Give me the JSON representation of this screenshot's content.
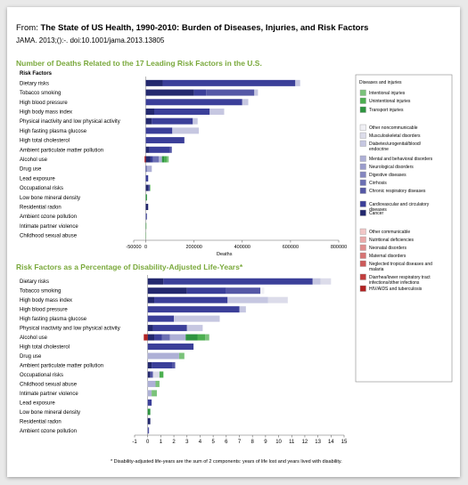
{
  "header": {
    "from_label": "From:",
    "title": "The State of US Health, 1990-2010:  Burden of Diseases, Injuries, and Risk Factors",
    "citation": "JAMA. 2013;():-. doi:10.1001/jama.2013.13805"
  },
  "legend": {
    "groups": [
      {
        "heading": "Diseases and injuries",
        "items": [
          {
            "label": "Intentional injuries",
            "color": "#7ac27a"
          },
          {
            "label": "Unintentional injuries",
            "color": "#4caf50"
          },
          {
            "label": "Transport injuries",
            "color": "#2e9440"
          }
        ]
      },
      {
        "heading": "",
        "items": [
          {
            "label": "Other noncommunicable",
            "color": "#f0f0f5"
          },
          {
            "label": "Musculoskeletal disorders",
            "color": "#dcdcea"
          },
          {
            "label": "Diabetes/urogenital/blood/ endocrine",
            "color": "#c6c7e1"
          },
          {
            "label": "Mental and behavioral disorders",
            "color": "#aeb0d6"
          },
          {
            "label": "Neurological disorders",
            "color": "#9a9ccc"
          },
          {
            "label": "Digestive diseases",
            "color": "#8486c0"
          },
          {
            "label": "Cirrhosis",
            "color": "#6b6fb3"
          },
          {
            "label": "Chronic respiratory diseases",
            "color": "#5558a6"
          },
          {
            "label": "Cardiovascular and circulatory diseases",
            "color": "#3b3f99"
          },
          {
            "label": "Cancer",
            "color": "#23286e"
          }
        ]
      },
      {
        "heading": "",
        "items": [
          {
            "label": "Other communicable",
            "color": "#f2c7c7"
          },
          {
            "label": "Nutritional deficiencies",
            "color": "#eaa9a9"
          },
          {
            "label": "Neonatal disorders",
            "color": "#e08e8e"
          },
          {
            "label": "Maternal disorders",
            "color": "#d77474"
          },
          {
            "label": "Neglected tropical diseases and malaria",
            "color": "#cc5a5a"
          },
          {
            "label": "Diarrhea/lower respiratory tract infections/other infections",
            "color": "#c23d3d"
          },
          {
            "label": "HIV/AIDS and tuberculosis",
            "color": "#b22222"
          }
        ]
      }
    ]
  },
  "chart_data": [
    {
      "type": "bar",
      "title": "Number of Deaths Related to the 17 Leading Risk Factors in the U.S.",
      "category_header": "Risk Factors",
      "xlabel": "Deaths",
      "xlim": [
        -50000,
        800000
      ],
      "xticks": [
        -50000,
        0,
        200000,
        400000,
        600000,
        800000
      ],
      "xtick_labels": [
        "-50000",
        "0",
        "200000",
        "400000",
        "600000",
        "800000"
      ],
      "stacked": true,
      "categories": [
        "Dietary risks",
        "Tobacco smoking",
        "High blood pressure",
        "High body mass index",
        "Physical inactivity and low physical activity",
        "High fasting plasma glucose",
        "High total cholesterol",
        "Ambient particulate matter pollution",
        "Alcohol use",
        "Drug use",
        "Lead exposure",
        "Occupational risks",
        "Low bone mineral density",
        "Residential radon",
        "Ambient ozone pollution",
        "Intimate partner violence",
        "Childhood sexual abuse"
      ],
      "series": [
        {
          "name": "Cancer",
          "values": [
            70000,
            200000,
            0,
            35000,
            25000,
            0,
            0,
            15000,
            20000,
            0,
            0,
            12000,
            0,
            10000,
            0,
            0,
            0
          ]
        },
        {
          "name": "Cardiovascular and circulatory diseases",
          "values": [
            550000,
            50000,
            400000,
            230000,
            170000,
            110000,
            160000,
            85000,
            10000,
            3000,
            10000,
            0,
            0,
            0,
            0,
            0,
            0
          ]
        },
        {
          "name": "Chronic respiratory diseases",
          "values": [
            0,
            200000,
            0,
            0,
            0,
            0,
            0,
            8000,
            0,
            0,
            0,
            5000,
            0,
            0,
            5000,
            0,
            0
          ]
        },
        {
          "name": "Cirrhosis",
          "values": [
            0,
            0,
            0,
            0,
            0,
            0,
            0,
            0,
            25000,
            2000,
            0,
            0,
            0,
            0,
            0,
            0,
            0
          ]
        },
        {
          "name": "Diabetes/urogenital/blood/ endocrine",
          "values": [
            20000,
            15000,
            25000,
            60000,
            20000,
            110000,
            0,
            0,
            2000,
            0,
            0,
            0,
            0,
            0,
            0,
            0,
            0
          ]
        },
        {
          "name": "Mental and behavioral disorders",
          "values": [
            0,
            0,
            0,
            0,
            0,
            0,
            0,
            0,
            10000,
            20000,
            0,
            0,
            0,
            0,
            0,
            0,
            0
          ]
        },
        {
          "name": "Transport injuries",
          "values": [
            0,
            0,
            0,
            0,
            0,
            0,
            0,
            0,
            10000,
            0,
            0,
            0,
            5000,
            0,
            0,
            1000,
            0
          ]
        },
        {
          "name": "Unintentional injuries",
          "values": [
            0,
            0,
            0,
            0,
            0,
            0,
            0,
            0,
            10000,
            0,
            0,
            2000,
            0,
            0,
            0,
            0,
            0
          ]
        },
        {
          "name": "Intentional injuries",
          "values": [
            0,
            0,
            0,
            0,
            0,
            0,
            0,
            0,
            8000,
            0,
            0,
            0,
            0,
            0,
            0,
            1000,
            1000
          ]
        },
        {
          "name": "HIV/AIDS and tuberculosis",
          "values": [
            0,
            0,
            0,
            0,
            0,
            0,
            0,
            0,
            -5000,
            0,
            0,
            0,
            0,
            0,
            0,
            0,
            0
          ]
        }
      ]
    },
    {
      "type": "bar",
      "title": "Risk Factors as a Percentage of Disability-Adjusted Life-Years*",
      "xlim": [
        -1,
        15
      ],
      "xticks": [
        -1,
        0,
        1,
        2,
        3,
        4,
        5,
        6,
        7,
        8,
        9,
        10,
        11,
        12,
        13,
        14,
        15
      ],
      "stacked": true,
      "categories": [
        "Dietary risks",
        "Tobacco smoking",
        "High body mass index",
        "High blood pressure",
        "High fasting plasma glucose",
        "Physical inactivity and low physical activity",
        "Alcohol use",
        "High total cholesterol",
        "Drug use",
        "Ambient particulate matter pollution",
        "Occupational risks",
        "Childhood sexual abuse",
        "Intimate partner violence",
        "Lead exposure",
        "Low bone mineral density",
        "Residential radon",
        "Ambient ozone pollution"
      ],
      "series": [
        {
          "name": "Cancer",
          "values": [
            1.2,
            3.0,
            0.5,
            0,
            0,
            0.4,
            0.5,
            0,
            0,
            0.3,
            0.2,
            0,
            0,
            0,
            0,
            0.2,
            0
          ]
        },
        {
          "name": "Cardiovascular and circulatory diseases",
          "values": [
            11.4,
            3.0,
            5.6,
            7.0,
            2.0,
            2.6,
            0.6,
            3.5,
            0,
            1.6,
            0,
            0,
            0,
            0.3,
            0,
            0,
            0
          ]
        },
        {
          "name": "Chronic respiratory diseases",
          "values": [
            0,
            2.6,
            0,
            0,
            0,
            0,
            0,
            0,
            0,
            0.2,
            0.2,
            0,
            0,
            0,
            0,
            0,
            0.1
          ]
        },
        {
          "name": "Cirrhosis",
          "values": [
            0,
            0,
            0,
            0,
            0,
            0,
            0.6,
            0,
            0,
            0,
            0,
            0,
            0,
            0,
            0,
            0,
            0
          ]
        },
        {
          "name": "Diabetes/urogenital/blood/ endocrine",
          "values": [
            0.6,
            0,
            3.1,
            0.5,
            3.5,
            1.2,
            0,
            0,
            0,
            0,
            0,
            0,
            0,
            0,
            0,
            0,
            0
          ]
        },
        {
          "name": "Musculoskeletal disorders",
          "values": [
            0.8,
            0,
            1.5,
            0,
            0,
            0,
            0,
            0,
            0,
            0,
            0.5,
            0,
            0,
            0,
            0,
            0,
            0
          ]
        },
        {
          "name": "Mental and behavioral disorders",
          "values": [
            0,
            0,
            0,
            0,
            0,
            0,
            1.2,
            0,
            2.4,
            0,
            0,
            0.6,
            0.3,
            0,
            0,
            0,
            0
          ]
        },
        {
          "name": "Transport injuries",
          "values": [
            0,
            0,
            0,
            0,
            0,
            0,
            0.9,
            0,
            0,
            0,
            0,
            0,
            0,
            0,
            0.2,
            0,
            0
          ]
        },
        {
          "name": "Unintentional injuries",
          "values": [
            0,
            0,
            0,
            0,
            0,
            0,
            0.6,
            0,
            0,
            0,
            0.3,
            0,
            0,
            0,
            0,
            0,
            0
          ]
        },
        {
          "name": "Intentional injuries",
          "values": [
            0,
            0,
            0,
            0,
            0,
            0,
            0.3,
            0,
            0.4,
            0,
            0,
            0.3,
            0.4,
            0,
            0,
            0,
            0
          ]
        },
        {
          "name": "Other noncommunicable",
          "values": [
            0,
            0.3,
            0,
            0,
            0,
            0,
            0,
            0,
            0,
            0,
            0,
            0,
            0,
            0,
            0,
            0,
            0
          ]
        },
        {
          "name": "HIV/AIDS and tuberculosis",
          "values": [
            0,
            0,
            0,
            0,
            0,
            0,
            -0.3,
            0,
            0,
            0,
            0,
            0,
            0,
            0,
            0,
            0,
            0
          ]
        }
      ]
    }
  ],
  "footnote": "* Disability-adjusted life-years are the sum of 2 components: years of life lost and years lived with disability."
}
